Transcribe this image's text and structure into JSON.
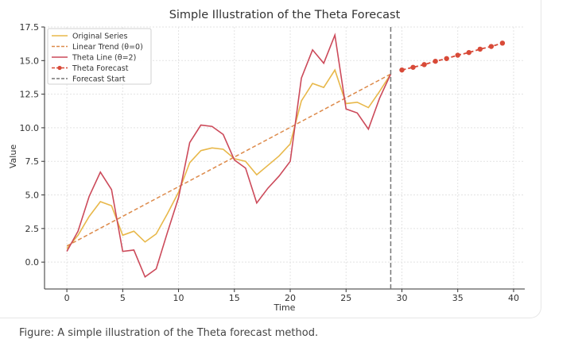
{
  "chart_data": {
    "type": "line",
    "title": "Simple Illustration of the Theta Forecast",
    "xlabel": "Time",
    "ylabel": "Value",
    "xlim": [
      -2,
      41
    ],
    "ylim": [
      -2.0,
      17.5
    ],
    "xticks": [
      0,
      5,
      10,
      15,
      20,
      25,
      30,
      35,
      40
    ],
    "yticks": [
      0.0,
      2.5,
      5.0,
      7.5,
      10.0,
      12.5,
      15.0,
      17.5
    ],
    "grid": true,
    "legend_position": "top-left",
    "series": [
      {
        "name": "Original Series",
        "color": "#e8b84a",
        "style": "solid",
        "x": [
          0,
          1,
          2,
          3,
          4,
          5,
          6,
          7,
          8,
          9,
          10,
          11,
          12,
          13,
          14,
          15,
          16,
          17,
          18,
          19,
          20,
          21,
          22,
          23,
          24,
          25,
          26,
          27,
          28,
          29
        ],
        "y": [
          1.0,
          2.0,
          3.4,
          4.5,
          4.2,
          2.0,
          2.3,
          1.5,
          2.1,
          3.6,
          5.2,
          7.4,
          8.3,
          8.5,
          8.4,
          7.7,
          7.5,
          6.5,
          7.2,
          7.9,
          8.8,
          12.0,
          13.3,
          13.0,
          14.3,
          11.8,
          11.9,
          11.5,
          12.7,
          14.0
        ]
      },
      {
        "name": "Linear Trend (θ=0)",
        "color": "#dd8a4a",
        "style": "dashed",
        "x": [
          0,
          29
        ],
        "y": [
          1.2,
          14.0
        ]
      },
      {
        "name": "Theta Line (θ=2)",
        "color": "#cc4a5a",
        "style": "solid",
        "x": [
          0,
          1,
          2,
          3,
          4,
          5,
          6,
          7,
          8,
          9,
          10,
          11,
          12,
          13,
          14,
          15,
          16,
          17,
          18,
          19,
          20,
          21,
          22,
          23,
          24,
          25,
          26,
          27,
          28,
          29
        ],
        "y": [
          0.8,
          2.3,
          4.9,
          6.7,
          5.4,
          0.8,
          0.9,
          -1.1,
          -0.5,
          2.2,
          4.8,
          8.9,
          10.2,
          10.1,
          9.5,
          7.6,
          7.0,
          4.4,
          5.5,
          6.4,
          7.5,
          13.7,
          15.8,
          14.8,
          16.9,
          11.4,
          11.1,
          9.9,
          12.2,
          14.0
        ]
      },
      {
        "name": "Theta Forecast",
        "color": "#d84a38",
        "style": "dashed-marker",
        "x": [
          30,
          31,
          32,
          33,
          34,
          35,
          36,
          37,
          38,
          39
        ],
        "y": [
          14.3,
          14.5,
          14.7,
          14.95,
          15.15,
          15.4,
          15.6,
          15.85,
          16.05,
          16.3
        ]
      },
      {
        "name": "Forecast Start",
        "color": "#777777",
        "style": "vertical-dashed",
        "x": [
          29,
          29
        ],
        "y": [
          -2.0,
          17.5
        ]
      }
    ]
  },
  "caption": "Figure: A simple illustration of the Theta forecast method."
}
